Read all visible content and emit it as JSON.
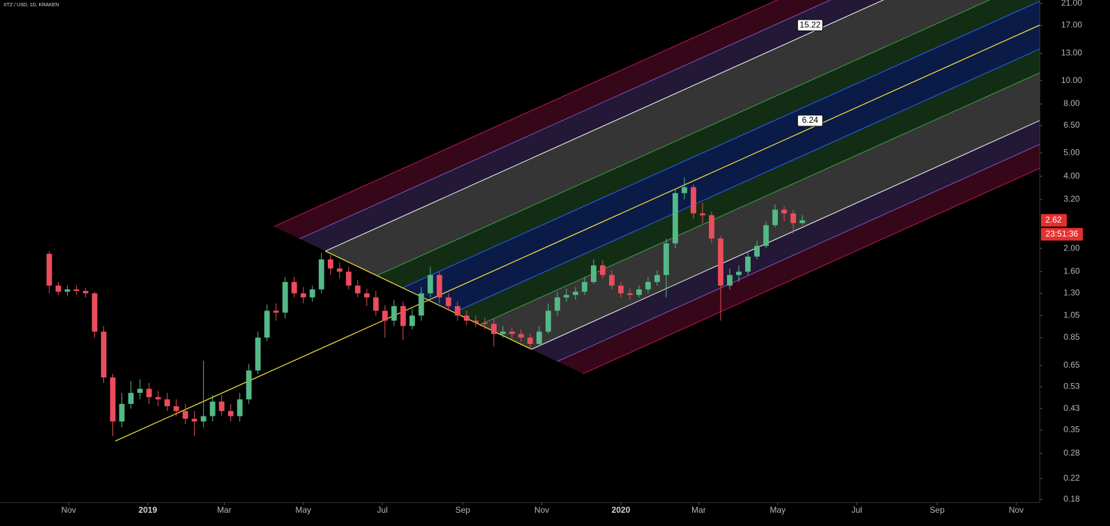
{
  "chart_data": {
    "type": "candlestick",
    "title": "XTZ / USD, 1D, KRAKEN",
    "log_scale": true,
    "grid": false,
    "up_color": "#53b987",
    "down_color": "#eb4d5c",
    "xlim": [
      -38,
      764
    ],
    "xticks": [
      {
        "value": 15,
        "label": "Nov"
      },
      {
        "value": 76,
        "label": "2019"
      },
      {
        "value": 135,
        "label": "Mar"
      },
      {
        "value": 196,
        "label": "May"
      },
      {
        "value": 257,
        "label": "Jul"
      },
      {
        "value": 319,
        "label": "Sep"
      },
      {
        "value": 380,
        "label": "Nov"
      },
      {
        "value": 441,
        "label": "2020"
      },
      {
        "value": 501,
        "label": "Mar"
      },
      {
        "value": 562,
        "label": "May"
      },
      {
        "value": 623,
        "label": "Jul"
      },
      {
        "value": 685,
        "label": "Sep"
      },
      {
        "value": 746,
        "label": "Nov"
      }
    ],
    "ylim": [
      0.175,
      21.7
    ],
    "yticks": [
      {
        "value": 21,
        "label": "21.00"
      },
      {
        "value": 17,
        "label": "17.00"
      },
      {
        "value": 13,
        "label": "13.00"
      },
      {
        "value": 10,
        "label": "10.00"
      },
      {
        "value": 8,
        "label": "8.00"
      },
      {
        "value": 6.5,
        "label": "6.50"
      },
      {
        "value": 5,
        "label": "5.00"
      },
      {
        "value": 4,
        "label": "4.00"
      },
      {
        "value": 3.2,
        "label": "3.20"
      },
      {
        "value": 2,
        "label": "2.00"
      },
      {
        "value": 1.6,
        "label": "1.60"
      },
      {
        "value": 1.3,
        "label": "1.30"
      },
      {
        "value": 1.05,
        "label": "1.05"
      },
      {
        "value": 0.85,
        "label": "0.85"
      },
      {
        "value": 0.65,
        "label": "0.65"
      },
      {
        "value": 0.53,
        "label": "0.53"
      },
      {
        "value": 0.43,
        "label": "0.43"
      },
      {
        "value": 0.35,
        "label": "0.35"
      },
      {
        "value": 0.28,
        "label": "0.28"
      },
      {
        "value": 0.22,
        "label": "0.22"
      },
      {
        "value": 0.18,
        "label": "0.18"
      }
    ],
    "x": [
      0,
      7,
      14,
      21,
      28,
      35,
      42,
      49,
      56,
      63,
      70,
      77,
      84,
      91,
      98,
      105,
      112,
      119,
      126,
      133,
      140,
      147,
      154,
      161,
      168,
      175,
      182,
      189,
      196,
      203,
      210,
      217,
      224,
      231,
      238,
      245,
      252,
      259,
      266,
      273,
      280,
      287,
      294,
      301,
      308,
      315,
      322,
      329,
      336,
      343,
      350,
      357,
      364,
      371,
      378,
      385,
      392,
      399,
      406,
      413,
      420,
      427,
      434,
      441,
      448,
      455,
      462,
      469,
      476,
      483,
      490,
      497,
      504,
      511,
      518,
      525,
      532,
      539,
      546,
      553,
      560,
      567,
      574,
      581
    ],
    "open": [
      1.9,
      1.4,
      1.32,
      1.35,
      1.33,
      1.3,
      0.9,
      0.58,
      0.38,
      0.45,
      0.5,
      0.52,
      0.48,
      0.47,
      0.44,
      0.42,
      0.39,
      0.38,
      0.4,
      0.46,
      0.42,
      0.4,
      0.47,
      0.62,
      0.85,
      1.1,
      1.08,
      1.45,
      1.3,
      1.25,
      1.35,
      1.8,
      1.65,
      1.6,
      1.4,
      1.3,
      1.25,
      1.1,
      1.0,
      1.15,
      0.95,
      1.05,
      1.3,
      1.55,
      1.25,
      1.15,
      1.05,
      1.0,
      0.98,
      0.97,
      0.88,
      0.9,
      0.88,
      0.85,
      0.8,
      0.9,
      1.1,
      1.25,
      1.28,
      1.32,
      1.45,
      1.7,
      1.55,
      1.4,
      1.3,
      1.28,
      1.35,
      1.45,
      1.55,
      2.1,
      3.4,
      3.6,
      2.8,
      2.75,
      2.2,
      1.4,
      1.55,
      1.6,
      1.85,
      2.05,
      2.5,
      2.9,
      2.8,
      2.55
    ],
    "high": [
      1.95,
      1.45,
      1.4,
      1.4,
      1.37,
      1.32,
      0.95,
      0.6,
      0.5,
      0.56,
      0.57,
      0.55,
      0.51,
      0.5,
      0.47,
      0.45,
      0.42,
      0.68,
      0.49,
      0.49,
      0.45,
      0.5,
      0.66,
      0.9,
      1.17,
      1.18,
      1.52,
      1.52,
      1.38,
      1.4,
      1.92,
      1.88,
      1.75,
      1.68,
      1.48,
      1.36,
      1.33,
      1.16,
      1.22,
      1.2,
      1.12,
      1.38,
      1.68,
      1.6,
      1.3,
      1.2,
      1.1,
      1.05,
      1.03,
      1.02,
      0.95,
      0.94,
      0.92,
      0.88,
      0.95,
      1.18,
      1.32,
      1.36,
      1.38,
      1.52,
      1.8,
      1.78,
      1.62,
      1.45,
      1.36,
      1.4,
      1.52,
      1.62,
      2.2,
      3.55,
      3.95,
      3.7,
      3.1,
      2.85,
      2.25,
      1.65,
      1.7,
      1.92,
      2.15,
      2.6,
      3.05,
      3.0,
      2.9,
      2.75
    ],
    "low": [
      1.3,
      1.28,
      1.27,
      1.28,
      1.25,
      0.85,
      0.55,
      0.33,
      0.36,
      0.43,
      0.47,
      0.45,
      0.44,
      0.42,
      0.4,
      0.37,
      0.33,
      0.36,
      0.38,
      0.4,
      0.38,
      0.38,
      0.45,
      0.6,
      0.82,
      1.0,
      1.02,
      1.25,
      1.18,
      1.2,
      1.3,
      1.55,
      1.5,
      1.35,
      1.25,
      1.15,
      1.05,
      0.85,
      0.95,
      0.83,
      0.92,
      1.0,
      1.25,
      1.18,
      1.1,
      1.0,
      0.96,
      0.94,
      0.92,
      0.78,
      0.85,
      0.84,
      0.82,
      0.77,
      0.78,
      0.88,
      1.05,
      1.2,
      1.22,
      1.28,
      1.42,
      1.5,
      1.35,
      1.25,
      1.22,
      1.25,
      1.3,
      1.4,
      1.25,
      2.0,
      3.2,
      2.65,
      2.55,
      2.1,
      1.0,
      1.35,
      1.45,
      1.55,
      1.8,
      2.0,
      2.45,
      2.6,
      2.3,
      2.5
    ],
    "close": [
      1.4,
      1.32,
      1.35,
      1.33,
      1.3,
      0.9,
      0.58,
      0.38,
      0.45,
      0.5,
      0.52,
      0.48,
      0.47,
      0.44,
      0.42,
      0.39,
      0.38,
      0.4,
      0.46,
      0.42,
      0.4,
      0.47,
      0.62,
      0.85,
      1.1,
      1.08,
      1.45,
      1.3,
      1.25,
      1.35,
      1.8,
      1.65,
      1.6,
      1.4,
      1.3,
      1.25,
      1.1,
      1.0,
      1.15,
      0.95,
      1.05,
      1.3,
      1.55,
      1.25,
      1.15,
      1.05,
      1.0,
      0.98,
      0.97,
      0.88,
      0.9,
      0.88,
      0.85,
      0.8,
      0.9,
      1.1,
      1.25,
      1.28,
      1.32,
      1.45,
      1.7,
      1.55,
      1.4,
      1.3,
      1.28,
      1.35,
      1.45,
      1.55,
      2.1,
      3.4,
      3.6,
      2.8,
      2.75,
      2.2,
      1.4,
      1.55,
      1.6,
      1.85,
      2.05,
      2.5,
      2.9,
      2.8,
      2.55,
      2.62
    ],
    "last_price": 2.62,
    "last_price_color": "#e5302f",
    "countdown": "23:51:36",
    "pitchfork": {
      "color": "#ffeb3b",
      "points": [
        {
          "x": 51,
          "y": 0.315
        },
        {
          "x": 213,
          "y": 1.95
        },
        {
          "x": 372,
          "y": 0.76
        }
      ],
      "levels": [
        {
          "value": 0.25,
          "color": "#2962ff"
        },
        {
          "value": 0.5,
          "color": "#43a047"
        },
        {
          "value": 1,
          "color": "#bdbdbd"
        },
        {
          "value": 1.25,
          "color": "#7e57c2"
        },
        {
          "value": 1.5,
          "color": "#c2185b"
        }
      ],
      "labels": [
        {
          "level": 1,
          "x": 587,
          "text": 15.22
        },
        {
          "level": 0,
          "x": 587,
          "text": 6.24
        }
      ]
    }
  }
}
